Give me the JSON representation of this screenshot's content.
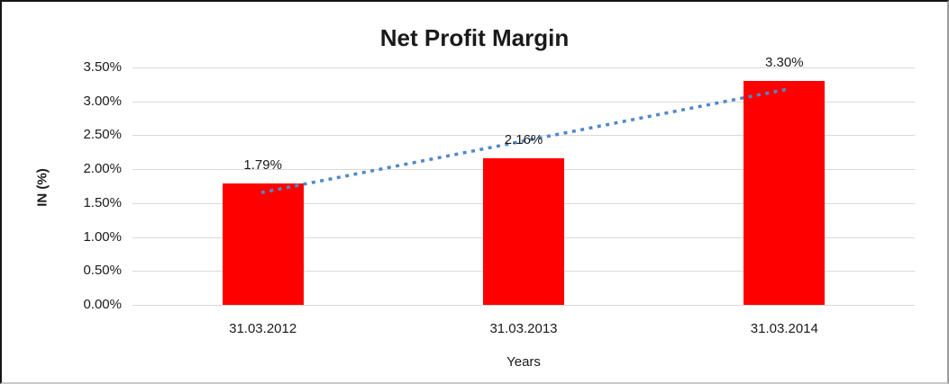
{
  "chart_data": {
    "type": "bar",
    "title": "Net Profit Margin",
    "categories": [
      "31.03.2012",
      "31.03.2013",
      "31.03.2014"
    ],
    "values": [
      1.79,
      2.16,
      3.3
    ],
    "data_labels": [
      "1.79%",
      "2.16%",
      "3.30%"
    ],
    "xlabel": "Years",
    "ylabel": "IN (%)",
    "ylim": [
      0,
      3.5
    ],
    "ytick_step": 0.5,
    "ytick_labels_top_to_bottom": [
      "3.50%",
      "3.00%",
      "2.50%",
      "2.00%",
      "1.50%",
      "1.00%",
      "0.50%",
      "0.00%"
    ],
    "grid": true,
    "legend": false,
    "bar_color": "#FF0000",
    "gridline_color": "#D9D9D9",
    "text_color": "#1A1A1A",
    "trendline": {
      "type": "linear",
      "style": "dotted",
      "color": "#5089C8",
      "start_value": 1.66,
      "end_value": 3.17
    }
  }
}
